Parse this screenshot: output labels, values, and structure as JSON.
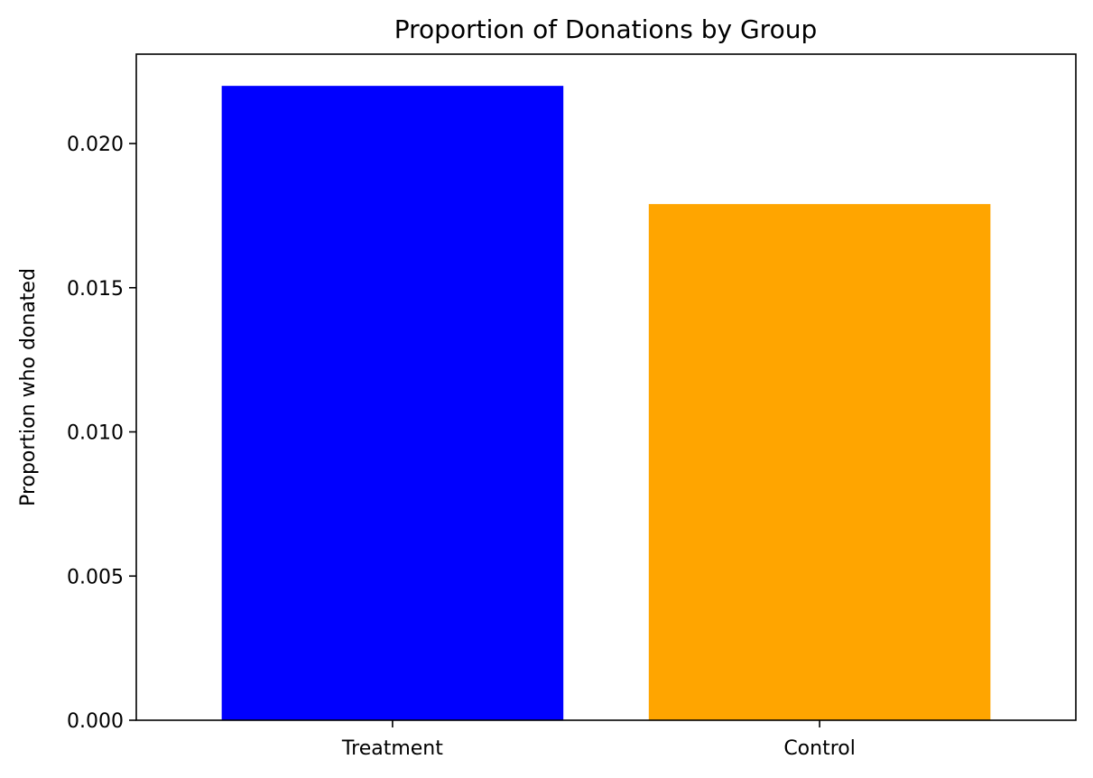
{
  "chart_data": {
    "type": "bar",
    "title": "Proportion of Donations by Group",
    "xlabel": "",
    "ylabel": "Proportion who donated",
    "categories": [
      "Treatment",
      "Control"
    ],
    "values": [
      0.022,
      0.0179
    ],
    "colors": [
      "#0000ff",
      "#ffa500"
    ],
    "ylim": [
      0,
      0.0231
    ],
    "yticks": [
      0.0,
      0.005,
      0.01,
      0.015,
      0.02
    ],
    "ytick_labels": [
      "0.000",
      "0.005",
      "0.010",
      "0.015",
      "0.020"
    ],
    "grid": false,
    "legend": "none"
  }
}
